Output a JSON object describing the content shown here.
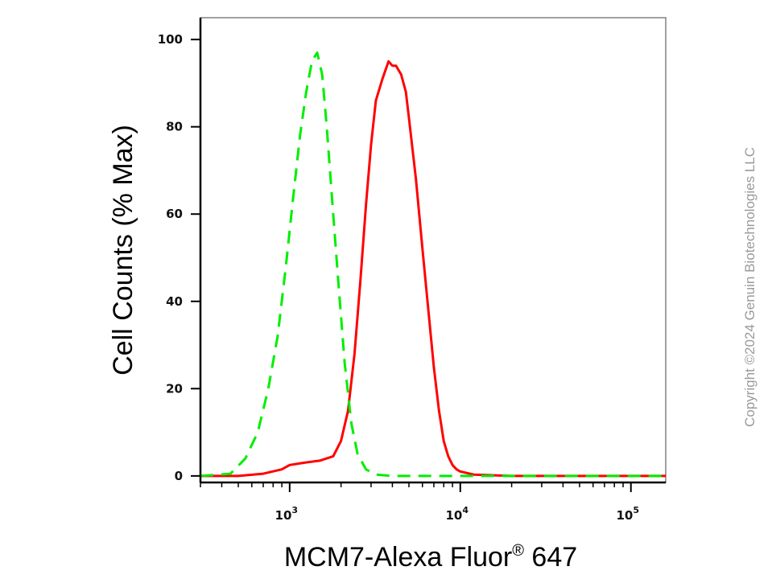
{
  "chart_data": {
    "type": "line",
    "title": "",
    "xlabel": "MCM7-Alexa Fluor",
    "xlabel_superscript": "®",
    "xlabel_suffix": " 647",
    "ylabel": "Cell Counts (% Max)",
    "x_scale": "log",
    "xlim": [
      300,
      160000
    ],
    "ylim": [
      -1.5,
      105
    ],
    "y_ticks": [
      0,
      20,
      40,
      60,
      80,
      100
    ],
    "x_major_ticks": [
      {
        "value": 1000,
        "base": "10",
        "exp": "3"
      },
      {
        "value": 10000,
        "base": "10",
        "exp": "4"
      },
      {
        "value": 100000,
        "base": "10",
        "exp": "5"
      }
    ],
    "grid": false,
    "legend": "none",
    "series": [
      {
        "color": "#ff0000",
        "style": "solid",
        "x": [
          300,
          500,
          700,
          900,
          1000,
          1200,
          1500,
          1800,
          2000,
          2200,
          2400,
          2600,
          2800,
          3000,
          3200,
          3500,
          3800,
          4000,
          4200,
          4500,
          4800,
          5000,
          5500,
          6000,
          6500,
          7000,
          7500,
          8000,
          8500,
          9000,
          9500,
          10000,
          12000,
          20000,
          50000,
          160000
        ],
        "y": [
          0,
          0,
          0.5,
          1.5,
          2.5,
          3,
          3.5,
          4.5,
          8,
          15,
          28,
          45,
          62,
          76,
          86,
          91,
          95,
          94,
          94,
          92,
          88,
          82,
          68,
          52,
          38,
          25,
          15,
          8,
          4.5,
          2.5,
          1.5,
          1,
          0.3,
          0,
          0,
          0
        ]
      },
      {
        "color": "#00ee00",
        "style": "dashed",
        "x": [
          300,
          450,
          550,
          650,
          750,
          850,
          950,
          1050,
          1150,
          1250,
          1350,
          1450,
          1550,
          1650,
          1800,
          1950,
          2100,
          2300,
          2500,
          2800,
          3200,
          4000,
          160000
        ],
        "y": [
          0,
          0.5,
          4,
          10,
          20,
          32,
          48,
          64,
          78,
          88,
          95,
          97,
          92,
          80,
          60,
          42,
          26,
          12,
          5,
          1.5,
          0.3,
          0,
          0
        ]
      }
    ]
  },
  "copyright": "Copyright ©2024 Genuin Biotechnologies LLC"
}
